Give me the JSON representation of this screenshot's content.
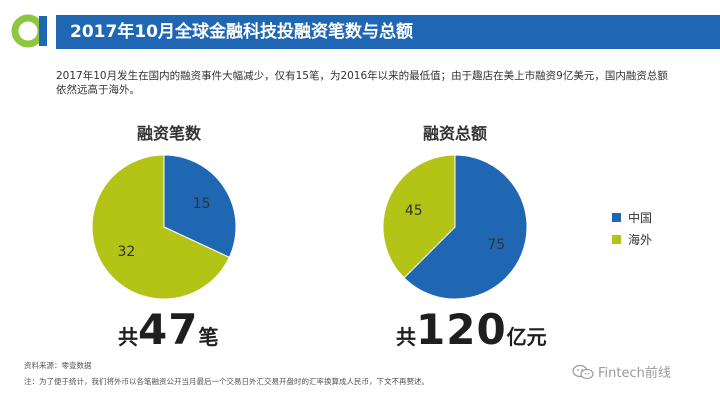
{
  "header": {
    "title": "2017年10月全球金融科技投融资笔数与总额"
  },
  "intro": {
    "line1": "2017年10月发生在国内的融资事件大幅减少，仅有15笔，为2016年以来的最低值；由于趣店在美上市融资9亿美元，国内融资总额",
    "line2": "依然远高于海外。"
  },
  "colors": {
    "china": "#1f67b2",
    "overseas": "#b4c416",
    "brand_green": "#8dc63f",
    "brand_blue": "#1f67b2"
  },
  "chart_data": [
    {
      "type": "pie",
      "title": "融资笔数",
      "slices": [
        {
          "label": "中国",
          "value": 15,
          "color": "#1f67b2"
        },
        {
          "label": "海外",
          "value": 32,
          "color": "#b4c416"
        }
      ],
      "total": {
        "prefix": "共",
        "value": "47",
        "suffix": "笔"
      }
    },
    {
      "type": "pie",
      "title": "融资总额",
      "slices": [
        {
          "label": "中国",
          "value": 75,
          "color": "#1f67b2"
        },
        {
          "label": "海外",
          "value": 45,
          "color": "#b4c416"
        }
      ],
      "total": {
        "prefix": "共",
        "value": "120",
        "suffix": "亿元"
      },
      "legend": [
        {
          "label": "中国",
          "color": "#1f67b2"
        },
        {
          "label": "海外",
          "color": "#b4c416"
        }
      ],
      "legend_position": "right"
    }
  ],
  "footer": {
    "source": "资料来源：零壹数据",
    "note": "注：为了便于统计，我们将外币以各笔融资公开当月最后一个交易日外汇交易开盘时的汇率换算成人民币，下文不再赘述。"
  },
  "watermark": {
    "text": "Fintech前线",
    "icon": "wechat-icon"
  }
}
